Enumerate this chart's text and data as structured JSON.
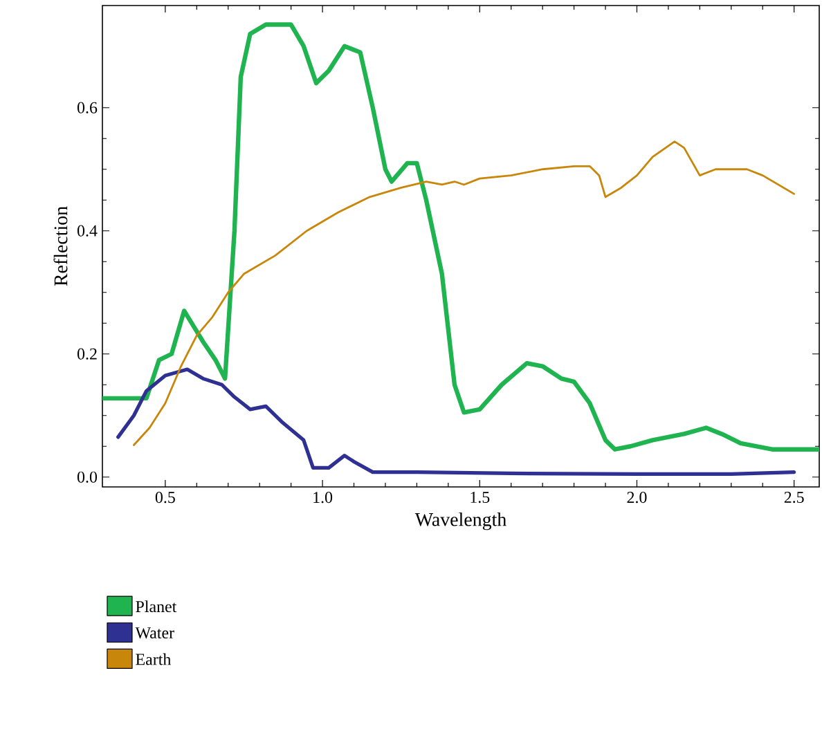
{
  "chart_data": {
    "type": "line",
    "xlabel": "Wavelength",
    "ylabel": "Reflection",
    "xlim": [
      0.3,
      2.58
    ],
    "ylim": [
      -0.016,
      0.766
    ],
    "xticks": [
      0.5,
      {
        "value": 1.0,
        "label": "1.0"
      },
      1.5,
      {
        "value": 2.0,
        "label": "2.0"
      },
      2.5
    ],
    "yticks": [
      {
        "value": 0,
        "label": "0.0"
      },
      0.2,
      0.4,
      0.6
    ],
    "legend": "bottom",
    "grid": false,
    "marker": "none",
    "line_style": "solid",
    "series": [
      {
        "name": "Planet",
        "color": "#1fb450",
        "x": [
          0.3,
          0.44,
          0.48,
          0.52,
          0.56,
          0.62,
          0.66,
          0.69,
          0.72,
          0.74,
          0.77,
          0.82,
          0.9,
          0.94,
          0.98,
          1.02,
          1.07,
          1.12,
          1.16,
          1.2,
          1.22,
          1.27,
          1.3,
          1.33,
          1.38,
          1.42,
          1.45,
          1.5,
          1.57,
          1.65,
          1.7,
          1.76,
          1.8,
          1.85,
          1.9,
          1.93,
          1.98,
          2.05,
          2.15,
          2.22,
          2.27,
          2.33,
          2.43,
          2.58
        ],
        "values": [
          0.128,
          0.128,
          0.19,
          0.2,
          0.27,
          0.22,
          0.19,
          0.16,
          0.4,
          0.65,
          0.72,
          0.735,
          0.735,
          0.7,
          0.64,
          0.66,
          0.7,
          0.69,
          0.6,
          0.5,
          0.48,
          0.51,
          0.51,
          0.45,
          0.33,
          0.15,
          0.105,
          0.11,
          0.15,
          0.185,
          0.18,
          0.16,
          0.155,
          0.12,
          0.06,
          0.045,
          0.05,
          0.06,
          0.07,
          0.08,
          0.07,
          0.055,
          0.045,
          0.045
        ]
      },
      {
        "name": "Water",
        "color": "#2e3192",
        "x": [
          0.35,
          0.4,
          0.44,
          0.5,
          0.57,
          0.62,
          0.68,
          0.72,
          0.77,
          0.82,
          0.87,
          0.94,
          0.97,
          1.02,
          1.07,
          1.1,
          1.16,
          1.3,
          1.6,
          2.0,
          2.3,
          2.5
        ],
        "values": [
          0.065,
          0.1,
          0.14,
          0.165,
          0.175,
          0.16,
          0.15,
          0.13,
          0.11,
          0.115,
          0.09,
          0.06,
          0.015,
          0.015,
          0.035,
          0.025,
          0.008,
          0.008,
          0.006,
          0.005,
          0.005,
          0.008
        ]
      },
      {
        "name": "Earth",
        "color": "#c8860a",
        "x": [
          0.4,
          0.45,
          0.5,
          0.55,
          0.6,
          0.65,
          0.7,
          0.75,
          0.85,
          0.95,
          1.05,
          1.15,
          1.25,
          1.33,
          1.38,
          1.42,
          1.45,
          1.5,
          1.6,
          1.7,
          1.8,
          1.85,
          1.88,
          1.9,
          1.95,
          2.0,
          2.05,
          2.12,
          2.15,
          2.2,
          2.25,
          2.35,
          2.4,
          2.45,
          2.5
        ],
        "values": [
          0.052,
          0.08,
          0.12,
          0.18,
          0.23,
          0.26,
          0.3,
          0.33,
          0.36,
          0.4,
          0.43,
          0.455,
          0.47,
          0.48,
          0.475,
          0.48,
          0.475,
          0.485,
          0.49,
          0.5,
          0.505,
          0.505,
          0.49,
          0.455,
          0.47,
          0.49,
          0.52,
          0.545,
          0.535,
          0.49,
          0.5,
          0.5,
          0.49,
          0.475,
          0.46
        ]
      }
    ]
  }
}
